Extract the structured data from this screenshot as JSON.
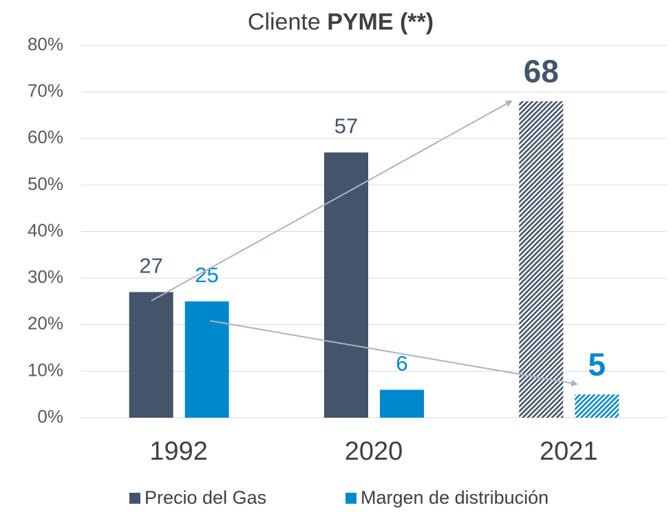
{
  "chart_data": {
    "type": "bar",
    "title_parts": [
      "Cliente",
      "PYME (**)"
    ],
    "categories": [
      "1992",
      "2020",
      "2021"
    ],
    "series": [
      {
        "name": "Precio del Gas",
        "color": "#44546a",
        "values": [
          27,
          57,
          68
        ]
      },
      {
        "name": "Margen de distribución",
        "color": "#0088cc",
        "values": [
          25,
          6,
          5
        ]
      }
    ],
    "hatched": [
      false,
      false,
      true
    ],
    "ylim": [
      0,
      80
    ],
    "yticks": [
      {
        "value": 0,
        "label": "0%"
      },
      {
        "value": 10,
        "label": "10%"
      },
      {
        "value": 20,
        "label": "20%"
      },
      {
        "value": 30,
        "label": "30%"
      },
      {
        "value": 40,
        "label": "40%"
      },
      {
        "value": 50,
        "label": "50%"
      },
      {
        "value": 60,
        "label": "60%"
      },
      {
        "value": 70,
        "label": "70%"
      },
      {
        "value": 80,
        "label": "80%"
      }
    ],
    "grid": true,
    "legend": "bottom"
  }
}
